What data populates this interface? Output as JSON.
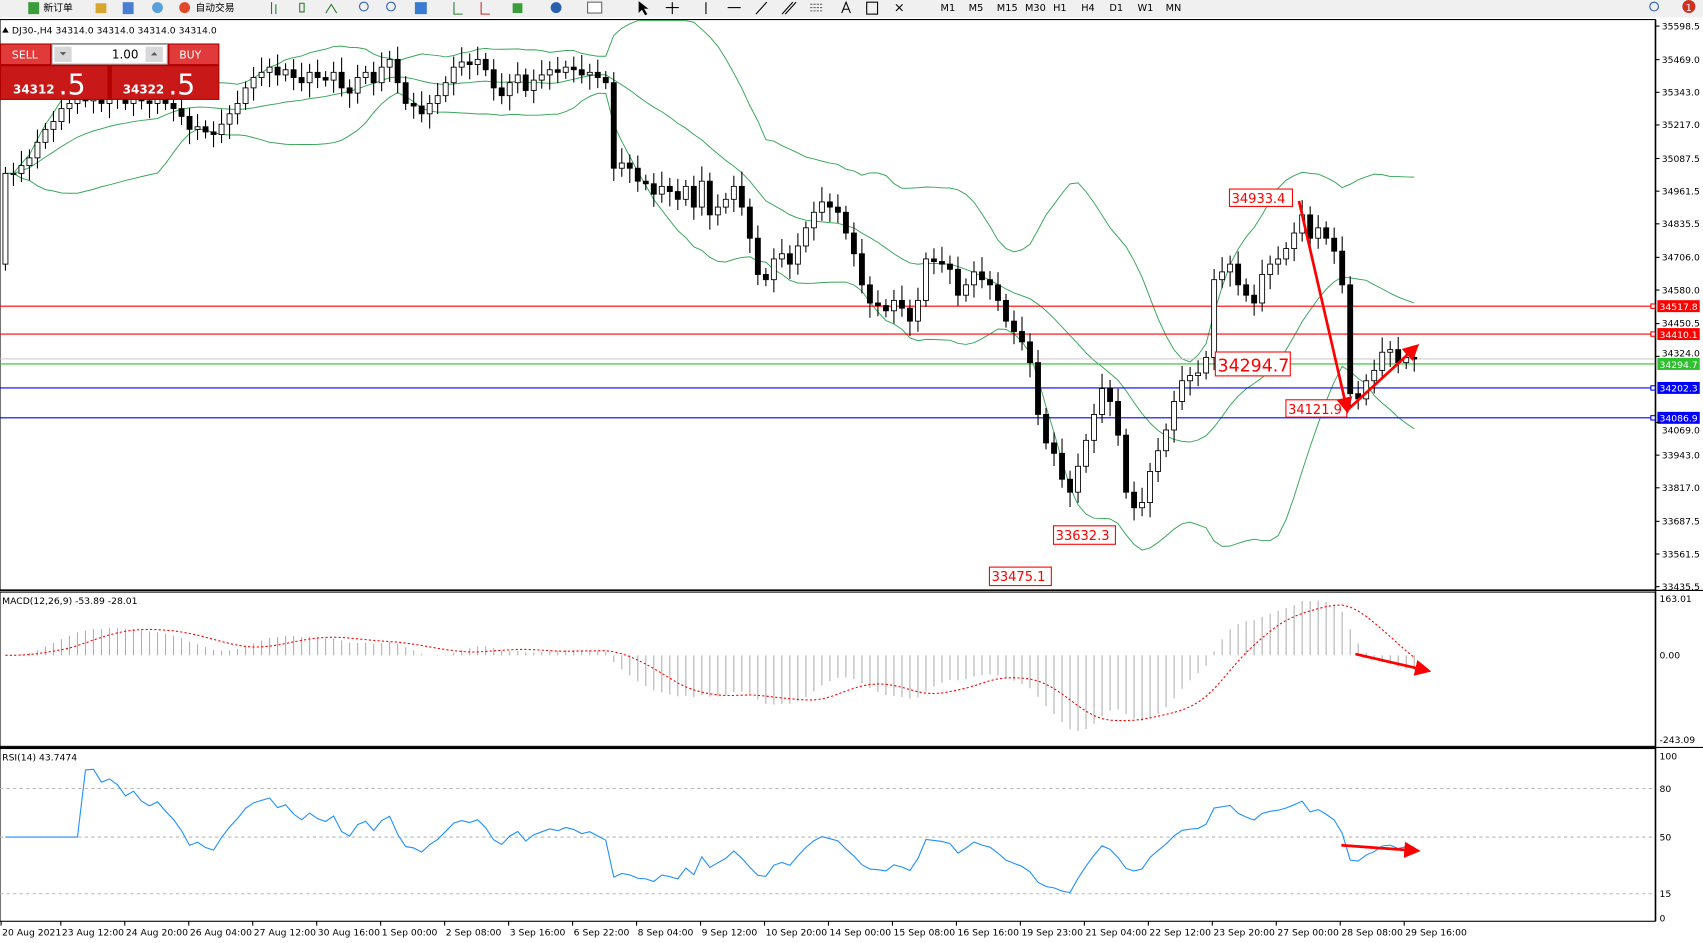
{
  "toolbar": {
    "new_order_label": "新订单",
    "auto_trading_label": "自动交易",
    "timeframes": [
      "M1",
      "M5",
      "M15",
      "M30",
      "H1",
      "H4",
      "D1",
      "W1",
      "MN"
    ],
    "notification_count": "1"
  },
  "chart_header": "DJ30-,H4  34314.0 34314.0 34314.0 34314.0",
  "trade_panel": {
    "sell_label": "SELL",
    "buy_label": "BUY",
    "lot_value": "1.00",
    "sell_price_main": "34312",
    "sell_price_frac": ".5",
    "buy_price_main": "34322",
    "buy_price_frac": ".5"
  },
  "colors": {
    "bull_candle": "#ffffff",
    "bear_candle": "#000000",
    "bollinger": "#3aa65a",
    "resistance_line": "#ff0000",
    "support_line": "#0000ff",
    "bid_line": "#2ec02e",
    "macd_histogram": "#b0b0b0",
    "macd_signal": "#ff0000",
    "rsi_line": "#1e90ff",
    "annotation": "#ff0000"
  },
  "chart_data": {
    "type": "candlestick",
    "symbol": "DJ30-",
    "timeframe": "H4",
    "price_axis_ticks": [
      "35598.5",
      "35469.0",
      "35343.0",
      "35217.0",
      "35087.5",
      "34961.5",
      "34835.5",
      "34706.0",
      "34580.0",
      "34450.5",
      "34324.0",
      "34069.0",
      "33943.0",
      "33817.0",
      "33687.5",
      "33561.5",
      "33435.5"
    ],
    "price_range": [
      33435.5,
      35598.5
    ],
    "time_axis_ticks": [
      "20 Aug 2021",
      "23 Aug 12:00",
      "24 Aug 20:00",
      "26 Aug 04:00",
      "27 Aug 12:00",
      "30 Aug 16:00",
      "1 Sep 00:00",
      "2 Sep 08:00",
      "3 Sep 16:00",
      "6 Sep 22:00",
      "8 Sep 04:00",
      "9 Sep 12:00",
      "10 Sep 20:00",
      "14 Sep 00:00",
      "15 Sep 08:00",
      "16 Sep 16:00",
      "19 Sep 23:00",
      "21 Sep 04:00",
      "22 Sep 12:00",
      "23 Sep 20:00",
      "27 Sep 00:00",
      "28 Sep 08:00",
      "29 Sep 16:00"
    ],
    "first_open": 34680,
    "closes": [
      35030,
      35030,
      35060,
      35090,
      35150,
      35200,
      35230,
      35280,
      35300,
      35330,
      35310,
      35320,
      35300,
      35330,
      35320,
      35300,
      35330,
      35310,
      35300,
      35320,
      35300,
      35280,
      35250,
      35200,
      35210,
      35190,
      35180,
      35220,
      35260,
      35300,
      35360,
      35400,
      35420,
      35440,
      35410,
      35430,
      35400,
      35380,
      35420,
      35400,
      35390,
      35420,
      35360,
      35340,
      35400,
      35420,
      35380,
      35440,
      35470,
      35380,
      35300,
      35290,
      35260,
      35300,
      35330,
      35380,
      35440,
      35460,
      35450,
      35470,
      35430,
      35360,
      35330,
      35380,
      35410,
      35350,
      35390,
      35410,
      35430,
      35420,
      35440,
      35430,
      35410,
      35420,
      35400,
      35380,
      35050,
      35070,
      35050,
      35000,
      34990,
      34950,
      34980,
      34960,
      34930,
      34980,
      34900,
      35000,
      34870,
      34900,
      34930,
      34980,
      34900,
      34780,
      34640,
      34620,
      34700,
      34720,
      34680,
      34750,
      34820,
      34880,
      34920,
      34900,
      34880,
      34800,
      34720,
      34600,
      34530,
      34520,
      34500,
      34540,
      34510,
      34460,
      34540,
      34700,
      34690,
      34680,
      34660,
      34560,
      34600,
      34650,
      34620,
      34600,
      34540,
      34460,
      34420,
      34380,
      34300,
      34100,
      33990,
      33950,
      33850,
      33800,
      33900,
      34000,
      34100,
      34200,
      34150,
      34020,
      33800,
      33740,
      33760,
      33880,
      33960,
      34040,
      34150,
      34230,
      34250,
      34260,
      34320,
      34620,
      34650,
      34680,
      34600,
      34560,
      34530,
      34640,
      34680,
      34700,
      34740,
      34800,
      34870,
      34780,
      34820,
      34780,
      34730,
      34600,
      34180,
      34160,
      34230,
      34270,
      34340,
      34350,
      34300,
      34320,
      34314
    ],
    "horizontal_levels": [
      {
        "price": 34517.8,
        "label": "34517.8",
        "color": "#ff0000"
      },
      {
        "price": 34410.1,
        "label": "34410.1",
        "color": "#ff0000"
      },
      {
        "price": 34294.7,
        "label": "34294.7",
        "color": "#2ec02e"
      },
      {
        "price": 34202.3,
        "label": "34202.3",
        "color": "#0000ff"
      },
      {
        "price": 34086.9,
        "label": "34086.9",
        "color": "#0000ff"
      }
    ],
    "annotations": [
      "34933.4",
      "34294.7",
      "34121.9",
      "33632.3",
      "33475.1"
    ],
    "indicators": {
      "bollinger": {
        "period": 20,
        "deviation": 2
      },
      "macd": {
        "label": "MACD(12,26,9) -53.89 -28.01",
        "axis_ticks": [
          "163.01",
          "0.00",
          "-243.09"
        ],
        "range": [
          -243.09,
          163.01
        ]
      },
      "rsi": {
        "label": "RSI(14) 43.7474",
        "axis_ticks": [
          "100",
          "80",
          "50",
          "15",
          "0"
        ],
        "levels": [
          80,
          50,
          15
        ]
      }
    }
  }
}
